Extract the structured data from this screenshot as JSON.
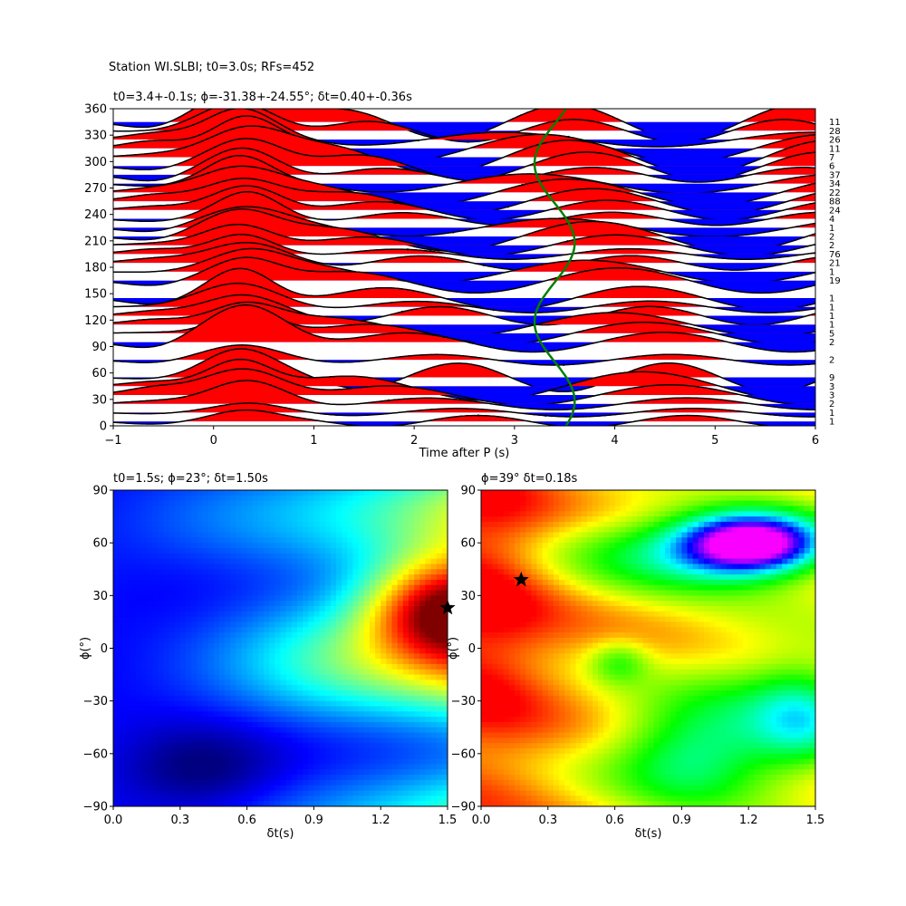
{
  "page": {
    "suptitle": "Station WI.SLBI; t0=3.0s; RFs=452",
    "top_title": "t0=3.4+-0.1s; ϕ=-31.38+-24.55°; δt=0.40+-0.36s",
    "left_title": "t0=1.5s; ϕ=23°; δt=1.50s",
    "right_title": "ϕ=39° δt=0.18s"
  },
  "colors": {
    "positive_fill": "#ff0000",
    "negative_fill": "#0000ff",
    "trace_line": "#000000",
    "fit_curve": "#008000",
    "star": "#000000"
  },
  "chart_data": [
    {
      "type": "line",
      "panel": "top",
      "title": "t0=3.4+-0.1s; ϕ=-31.38+-24.55°; δt=0.40+-0.36s",
      "xlabel": "Time after P (s)",
      "ylabel": "",
      "xlim": [
        -1,
        6
      ],
      "ylim": [
        0,
        360
      ],
      "xticks": [
        "−1",
        "0",
        "1",
        "2",
        "3",
        "4",
        "5",
        "6"
      ],
      "yticks": [
        "0",
        "30",
        "60",
        "90",
        "120",
        "150",
        "180",
        "210",
        "240",
        "270",
        "300",
        "330",
        "360"
      ],
      "traces": [
        {
          "baz": 5,
          "peak_amp": 12,
          "count": "1"
        },
        {
          "baz": 15,
          "peak_amp": 10,
          "count": "1"
        },
        {
          "baz": 25,
          "peak_amp": 26,
          "count": "2"
        },
        {
          "baz": 35,
          "peak_amp": 30,
          "count": "3"
        },
        {
          "baz": 45,
          "peak_amp": 30,
          "count": "3"
        },
        {
          "baz": 55,
          "peak_amp": 30,
          "count": "9"
        },
        {
          "baz": 75,
          "peak_amp": 16,
          "count": "2"
        },
        {
          "baz": 95,
          "peak_amp": 42,
          "count": "2"
        },
        {
          "baz": 105,
          "peak_amp": 26,
          "count": "5"
        },
        {
          "baz": 115,
          "peak_amp": 24,
          "count": "1"
        },
        {
          "baz": 125,
          "peak_amp": 22,
          "count": "1"
        },
        {
          "baz": 135,
          "peak_amp": 26,
          "count": "1"
        },
        {
          "baz": 145,
          "peak_amp": 34,
          "count": "1"
        },
        {
          "baz": 165,
          "peak_amp": 26,
          "count": "19"
        },
        {
          "baz": 175,
          "peak_amp": 24,
          "count": "1"
        },
        {
          "baz": 185,
          "peak_amp": 22,
          "count": "21"
        },
        {
          "baz": 195,
          "peak_amp": 22,
          "count": "76"
        },
        {
          "baz": 205,
          "peak_amp": 24,
          "count": "2"
        },
        {
          "baz": 215,
          "peak_amp": 30,
          "count": "2"
        },
        {
          "baz": 225,
          "peak_amp": 22,
          "count": "1"
        },
        {
          "baz": 235,
          "peak_amp": 30,
          "count": "4"
        },
        {
          "baz": 245,
          "peak_amp": 28,
          "count": "24"
        },
        {
          "baz": 255,
          "peak_amp": 26,
          "count": "88"
        },
        {
          "baz": 265,
          "peak_amp": 28,
          "count": "22"
        },
        {
          "baz": 275,
          "peak_amp": 30,
          "count": "34"
        },
        {
          "baz": 285,
          "peak_amp": 30,
          "count": "37"
        },
        {
          "baz": 295,
          "peak_amp": 32,
          "count": "6"
        },
        {
          "baz": 305,
          "peak_amp": 34,
          "count": "7"
        },
        {
          "baz": 315,
          "peak_amp": 34,
          "count": "11"
        },
        {
          "baz": 325,
          "peak_amp": 34,
          "count": "26"
        },
        {
          "baz": 335,
          "peak_amp": 32,
          "count": "28"
        },
        {
          "baz": 345,
          "peak_amp": 36,
          "count": "11"
        }
      ],
      "fit_curve": {
        "name": "",
        "center_time_s": 3.4,
        "amplitude_s": 0.2,
        "period_deg": 180
      }
    },
    {
      "type": "heatmap",
      "panel": "bottom-left",
      "title": "t0=1.5s; ϕ=23°; δt=1.50s",
      "xlabel": "δt(s)",
      "ylabel": "ϕ(°)",
      "xlim": [
        0.0,
        1.5
      ],
      "ylim": [
        -90,
        90
      ],
      "xticks": [
        "0.0",
        "0.3",
        "0.6",
        "0.9",
        "1.2",
        "1.5"
      ],
      "yticks": [
        "−90",
        "−60",
        "−30",
        "0",
        "30",
        "60",
        "90"
      ],
      "colormap": "jet",
      "best": {
        "dt": 1.5,
        "phi": 23
      }
    },
    {
      "type": "heatmap",
      "panel": "bottom-right",
      "title": "ϕ=39° δt=0.18s",
      "xlabel": "δt(s)",
      "ylabel": "ϕ(°)",
      "xlim": [
        0.0,
        1.5
      ],
      "ylim": [
        -90,
        90
      ],
      "xticks": [
        "0.0",
        "0.3",
        "0.6",
        "0.9",
        "1.2",
        "1.5"
      ],
      "yticks": [
        "−90",
        "−60",
        "−30",
        "0",
        "30",
        "60",
        "90"
      ],
      "colormap": "hsv",
      "best": {
        "dt": 0.18,
        "phi": 39
      }
    }
  ]
}
